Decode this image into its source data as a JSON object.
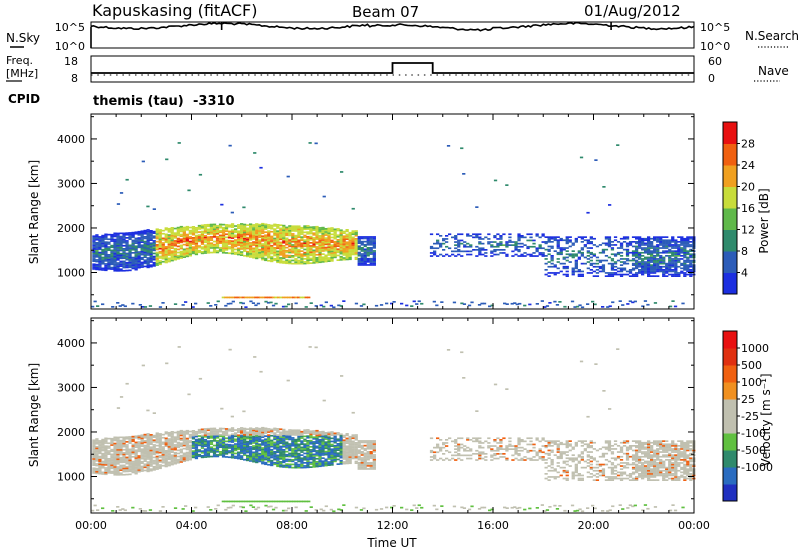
{
  "header": {
    "station": "Kapuskasing (fitACF)",
    "beam": "Beam 07",
    "date": "01/Aug/2012"
  },
  "nsky_panel": {
    "left_label": "N.Sky",
    "left_ticks": [
      "10^5",
      "10^0"
    ],
    "right_label": "N.Search",
    "right_ticks": [
      "10^5",
      "10^0"
    ]
  },
  "freq_panel": {
    "left_label_top": "Freq.",
    "left_label_unit": "[MHz]",
    "left_ticks": [
      "18",
      "8"
    ],
    "right_label": "Nave",
    "right_ticks": [
      "60",
      "0"
    ]
  },
  "cpid": {
    "label": "CPID",
    "program": "themis (tau)",
    "id": "-3310"
  },
  "colors": {
    "power_scale": [
      "#1c2fe0",
      "#2c5cb8",
      "#2f8a6c",
      "#5fb84a",
      "#c8dc3a",
      "#f0a020",
      "#f06010",
      "#e81010"
    ],
    "velocity_scale": [
      "#2030c0",
      "#2a6cc0",
      "#2f8a6c",
      "#60c040",
      "#c0c0b0",
      "#c0c0b0",
      "#f09020",
      "#f06010",
      "#e03010",
      "#e81010"
    ]
  },
  "chart_data": [
    {
      "type": "heatmap",
      "title": "",
      "quantity": "Power",
      "ylabel": "Slant Range [km]",
      "ylim": [
        180,
        4560
      ],
      "yticks": [
        "4000",
        "3000",
        "2000",
        "1000"
      ],
      "xlim": [
        "00:00",
        "24:00"
      ],
      "colorbar_label": "Power [dB]",
      "colorbar_ticks": [
        "28",
        "24",
        "20",
        "16",
        "12",
        "8",
        "4"
      ],
      "colorbar_range": [
        0,
        32
      ]
    },
    {
      "type": "heatmap",
      "title": "",
      "quantity": "Velocity",
      "ylabel": "Slant Range [km]",
      "ylim": [
        180,
        4560
      ],
      "yticks": [
        "4000",
        "3000",
        "2000",
        "1000"
      ],
      "xlabel": "Time UT",
      "xticks": [
        "00:00",
        "04:00",
        "08:00",
        "12:00",
        "16:00",
        "20:00",
        "00:00"
      ],
      "xlim": [
        "00:00",
        "24:00"
      ],
      "colorbar_label": "Velocity [m s⁻¹]",
      "colorbar_ticks": [
        "1000",
        "500",
        "100",
        "25",
        "-25",
        "-100",
        "-500",
        "-1000"
      ]
    }
  ]
}
